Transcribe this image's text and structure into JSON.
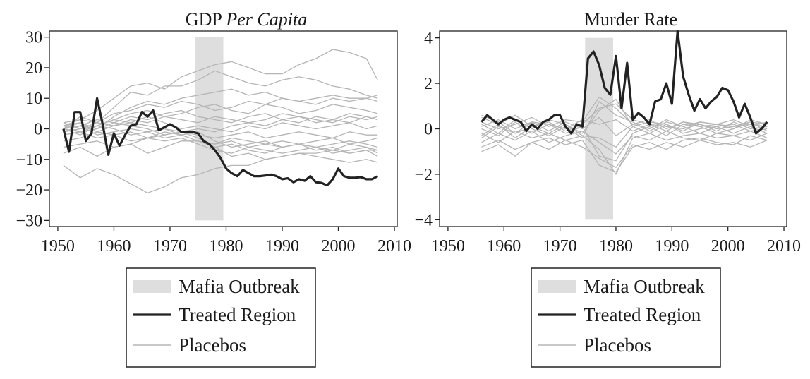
{
  "chart_data": [
    {
      "type": "line",
      "title_main": "GDP ",
      "title_italic": "Per Capita",
      "xlim": [
        1948.5,
        2010.5
      ],
      "ylim": [
        -32,
        32
      ],
      "xticks": [
        1950,
        1960,
        1970,
        1980,
        1990,
        2000,
        2010
      ],
      "yticks": [
        30,
        20,
        10,
        0,
        -10,
        -20,
        -30
      ],
      "shaded_region": {
        "label": "Mafia Outbreak",
        "x": [
          1974.5,
          1979.5
        ],
        "y": [
          -30,
          30
        ],
        "color": "#dedede"
      },
      "treated": {
        "name": "Treated Region",
        "color": "#222222",
        "x": [
          1951,
          1952,
          1953,
          1954,
          1955,
          1956,
          1957,
          1958,
          1959,
          1960,
          1961,
          1962,
          1963,
          1964,
          1965,
          1966,
          1967,
          1968,
          1969,
          1970,
          1971,
          1972,
          1973,
          1974,
          1975,
          1976,
          1977,
          1978,
          1979,
          1980,
          1981,
          1982,
          1983,
          1984,
          1985,
          1986,
          1987,
          1988,
          1989,
          1990,
          1991,
          1992,
          1993,
          1994,
          1995,
          1996,
          1997,
          1998,
          1999,
          2000,
          2001,
          2002,
          2003,
          2004,
          2005,
          2006,
          2007
        ],
        "y": [
          0,
          -7.5,
          5.5,
          5.5,
          -4,
          -1.5,
          10,
          1.5,
          -8.5,
          -1.5,
          -5.5,
          -2,
          1,
          1.5,
          5.5,
          4,
          6,
          -0.5,
          0.5,
          1.5,
          0.5,
          -1,
          -1,
          -1,
          -1.5,
          -4,
          -5,
          -7,
          -9.5,
          -13,
          -14.5,
          -15.5,
          -13.5,
          -14.5,
          -15.5,
          -15.5,
          -15.3,
          -15,
          -15.5,
          -16.5,
          -16.2,
          -17.5,
          -16.5,
          -17,
          -15.5,
          -17.5,
          -17.7,
          -18.5,
          -16.5,
          -13,
          -15.5,
          -16,
          -16,
          -15.8,
          -16.5,
          -16.5,
          -15.5
        ]
      },
      "placebos": {
        "name": "Placebos",
        "color": "#b5b5b5",
        "x_start": 1951,
        "x_end": 2007,
        "step": 3,
        "series": [
          [
            -12,
            -16,
            -13,
            -15,
            -18,
            -21,
            -19,
            -16,
            -15,
            -13,
            -12,
            -12,
            -10,
            -9,
            -8,
            -8,
            -7,
            -8,
            -7,
            -7
          ],
          [
            -8,
            -6,
            -9,
            -6,
            -5,
            -8,
            -6,
            -4,
            -4,
            -5,
            -3,
            -4,
            -5,
            -6,
            -5,
            -6,
            -7,
            -5,
            -6,
            -8
          ],
          [
            2,
            3,
            6,
            10,
            14,
            15,
            13,
            17,
            19,
            21,
            22,
            20,
            18,
            18,
            21,
            23,
            26,
            25,
            23,
            16
          ],
          [
            0,
            4,
            2,
            7,
            12,
            11,
            14,
            14,
            16,
            19,
            17,
            15,
            14,
            16,
            17,
            16,
            14,
            13,
            11,
            10
          ],
          [
            1,
            2,
            0,
            4,
            7,
            9,
            8,
            10,
            11,
            12,
            13,
            11,
            12,
            10,
            9,
            10,
            11,
            10,
            10,
            9
          ],
          [
            0,
            -2,
            1,
            3,
            5,
            6,
            4,
            5,
            7,
            8,
            6,
            5,
            8,
            7,
            5,
            6,
            8,
            7,
            6,
            5
          ],
          [
            -1,
            1,
            3,
            2,
            4,
            3,
            5,
            6,
            4,
            3,
            2,
            4,
            5,
            3,
            4,
            2,
            3,
            5,
            4,
            3
          ],
          [
            0,
            2,
            -1,
            1,
            2,
            4,
            2,
            0,
            1,
            0,
            -1,
            1,
            0,
            2,
            1,
            0,
            1,
            2,
            0,
            1
          ],
          [
            1,
            -1,
            0,
            2,
            1,
            0,
            -2,
            -1,
            -2,
            -3,
            -2,
            -1,
            -3,
            -2,
            -1,
            -2,
            -3,
            -1,
            -2,
            -2
          ],
          [
            0,
            1,
            -2,
            -1,
            0,
            -1,
            -3,
            -2,
            -4,
            -5,
            -4,
            -6,
            -5,
            -4,
            -5,
            -6,
            -5,
            -4,
            -5,
            -6
          ],
          [
            -2,
            -1,
            -3,
            -2,
            -1,
            -3,
            -4,
            -3,
            -5,
            -7,
            -8,
            -6,
            -7,
            -8,
            -7,
            -6,
            -8,
            -7,
            -6,
            -7
          ],
          [
            2,
            0,
            1,
            3,
            2,
            1,
            0,
            -1,
            -3,
            -6,
            -9,
            -8,
            -10,
            -9,
            -8,
            -9,
            -10,
            -11,
            -10,
            -11
          ],
          [
            -4,
            -3,
            -1,
            -2,
            -4,
            -3,
            -1,
            -2,
            -4,
            -6,
            -5,
            -7,
            -8,
            -6,
            -5,
            -7,
            -6,
            -8,
            -7,
            -9
          ],
          [
            1,
            3,
            2,
            5,
            6,
            8,
            7,
            9,
            8,
            6,
            7,
            9,
            8,
            10,
            9,
            8,
            10,
            9,
            10,
            11
          ],
          [
            -1,
            0,
            2,
            1,
            3,
            2,
            4,
            3,
            2,
            4,
            3,
            2,
            3,
            5,
            4,
            3,
            2,
            4,
            3,
            4
          ],
          [
            0,
            -1,
            1,
            0,
            -2,
            -1,
            0,
            -2,
            -1,
            -4,
            -6,
            -5,
            -4,
            -6,
            -5,
            -4,
            -3,
            -5,
            -4,
            -3
          ],
          [
            -6,
            -5,
            -4,
            -6,
            -5,
            -3,
            -2,
            -1,
            0,
            -1,
            1,
            2,
            1,
            3,
            2,
            4,
            3,
            2,
            4,
            3
          ]
        ]
      }
    },
    {
      "type": "line",
      "title_main": "Murder Rate",
      "title_italic": "",
      "xlim": [
        1948.5,
        2010.5
      ],
      "ylim": [
        -4.3,
        4.3
      ],
      "xticks": [
        1950,
        1960,
        1970,
        1980,
        1990,
        2000,
        2010
      ],
      "yticks": [
        4,
        2,
        0,
        -2,
        -4
      ],
      "shaded_region": {
        "label": "Mafia Outbreak",
        "x": [
          1974.5,
          1979.5
        ],
        "y": [
          -4,
          4
        ],
        "color": "#dedede"
      },
      "treated": {
        "name": "Treated Region",
        "color": "#222222",
        "x": [
          1956,
          1957,
          1958,
          1959,
          1960,
          1961,
          1962,
          1963,
          1964,
          1965,
          1966,
          1967,
          1968,
          1969,
          1970,
          1971,
          1972,
          1973,
          1974,
          1975,
          1976,
          1977,
          1978,
          1979,
          1980,
          1981,
          1982,
          1983,
          1984,
          1985,
          1986,
          1987,
          1988,
          1989,
          1990,
          1991,
          1992,
          1993,
          1994,
          1995,
          1996,
          1997,
          1998,
          1999,
          2000,
          2001,
          2002,
          2003,
          2004,
          2005,
          2006,
          2007
        ],
        "y": [
          0.3,
          0.6,
          0.4,
          0.2,
          0.4,
          0.5,
          0.4,
          0.3,
          -0.1,
          0.2,
          0.0,
          0.3,
          0.4,
          0.6,
          0.6,
          0.1,
          -0.2,
          0.2,
          0.1,
          3.1,
          3.4,
          2.8,
          1.8,
          1.5,
          3.2,
          0.9,
          2.9,
          0.4,
          0.7,
          0.5,
          0.2,
          1.2,
          1.3,
          2.0,
          1.1,
          4.3,
          2.3,
          1.5,
          0.8,
          1.3,
          0.9,
          1.2,
          1.4,
          1.8,
          1.7,
          1.2,
          0.5,
          1.1,
          0.5,
          -0.2,
          0.0,
          0.3
        ]
      },
      "placebos": {
        "name": "Placebos",
        "color": "#b5b5b5",
        "x_start": 1956,
        "x_end": 2007,
        "step": 3,
        "series": [
          [
            0.6,
            0.3,
            -0.2,
            0.1,
            0.3,
            -0.1,
            0.2,
            0.9,
            1.1,
            0.4,
            0.2,
            -0.1,
            0.3,
            0.1,
            0.2,
            0.0,
            0.4,
            0.2
          ],
          [
            -0.8,
            -0.5,
            -0.9,
            -0.6,
            -0.4,
            -0.7,
            -0.5,
            -1.6,
            -1.9,
            -0.8,
            -0.6,
            -0.9,
            -0.5,
            -0.4,
            -0.6,
            -0.7,
            -0.3,
            -0.5
          ],
          [
            0.2,
            -0.2,
            0.4,
            0.0,
            -0.3,
            0.1,
            -0.4,
            1.2,
            0.6,
            0.3,
            -0.1,
            0.3,
            0.1,
            -0.2,
            0.1,
            0.2,
            -0.1,
            0.0
          ],
          [
            -0.4,
            0.1,
            -0.2,
            0.3,
            0.2,
            -0.2,
            0.1,
            -1.2,
            -1.4,
            -0.2,
            0.1,
            -0.3,
            0.2,
            0.1,
            -0.2,
            0.0,
            0.3,
            -0.1
          ],
          [
            0.5,
            0.2,
            0.6,
            0.1,
            0.4,
            0.2,
            -0.2,
            0.8,
            1.3,
            0.1,
            0.3,
            0.2,
            -0.1,
            0.3,
            0.2,
            0.4,
            0.1,
            0.3
          ],
          [
            -0.2,
            -0.6,
            -0.1,
            -0.4,
            -0.2,
            -0.5,
            -0.3,
            -0.9,
            -2.0,
            -0.4,
            -0.2,
            -0.5,
            -0.3,
            -0.2,
            -0.4,
            -0.3,
            -0.5,
            -0.2
          ],
          [
            0.1,
            0.4,
            0.0,
            0.3,
            -0.1,
            0.3,
            0.0,
            0.5,
            -0.3,
            0.2,
            0.4,
            0.0,
            0.3,
            0.2,
            0.0,
            0.1,
            0.2,
            0.1
          ],
          [
            -0.6,
            -0.2,
            -0.5,
            -0.1,
            -0.6,
            -0.3,
            -0.1,
            -0.6,
            -1.1,
            -0.3,
            -0.5,
            -0.1,
            -0.4,
            -0.5,
            -0.2,
            -0.3,
            -0.1,
            -0.4
          ],
          [
            0.3,
            0.0,
            0.2,
            0.5,
            0.1,
            0.4,
            0.3,
            1.4,
            0.9,
            0.2,
            0.0,
            0.4,
            0.1,
            0.3,
            0.2,
            0.1,
            0.3,
            0.2
          ],
          [
            -1.0,
            -0.7,
            -1.2,
            -0.6,
            -0.9,
            -0.5,
            -0.8,
            -1.3,
            -1.7,
            -0.7,
            -0.9,
            -0.6,
            -0.8,
            -0.5,
            -0.7,
            -0.6,
            -0.8,
            -0.5
          ],
          [
            0.0,
            -0.3,
            0.3,
            -0.2,
            0.2,
            0.0,
            0.4,
            0.2,
            0.4,
            -0.1,
            0.2,
            0.1,
            0.0,
            0.2,
            -0.1,
            0.3,
            0.0,
            0.1
          ],
          [
            -0.3,
            0.2,
            -0.4,
            0.1,
            -0.2,
            0.2,
            -0.3,
            -0.4,
            -0.8,
            0.1,
            -0.2,
            0.2,
            -0.2,
            0.0,
            0.1,
            -0.2,
            0.1,
            -0.2
          ]
        ]
      }
    }
  ],
  "legends": [
    {
      "items": [
        {
          "kind": "box",
          "label": "Mafia Outbreak"
        },
        {
          "kind": "line-dark",
          "label": "Treated Region"
        },
        {
          "kind": "line-light",
          "label": "Placebos"
        }
      ]
    },
    {
      "items": [
        {
          "kind": "box",
          "label": "Mafia Outbreak"
        },
        {
          "kind": "line-dark",
          "label": "Treated Region"
        },
        {
          "kind": "line-light",
          "label": "Placebos"
        }
      ]
    }
  ]
}
